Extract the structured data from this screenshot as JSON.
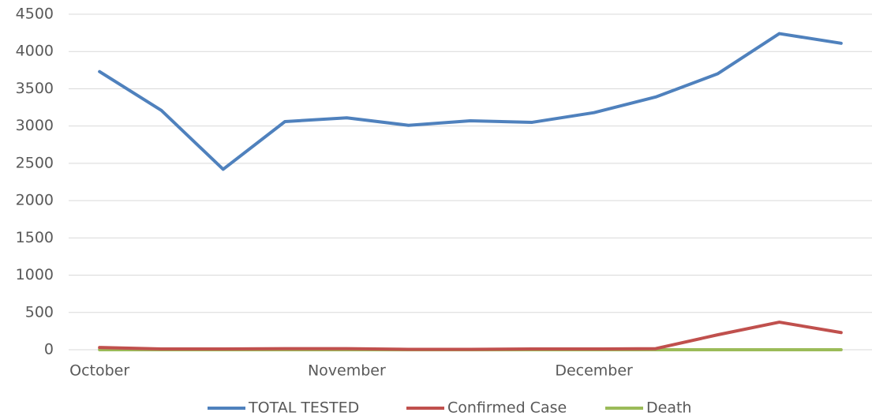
{
  "chart_data": {
    "type": "line",
    "categories": [
      "October",
      null,
      null,
      null,
      "November",
      null,
      null,
      null,
      "December",
      null,
      null,
      null,
      null
    ],
    "series": [
      {
        "name": "TOTAL TESTED",
        "color": "#4f81bd",
        "values": [
          3730,
          3210,
          2420,
          3060,
          3110,
          3010,
          3070,
          3050,
          3180,
          3390,
          3700,
          4240,
          4110
        ]
      },
      {
        "name": "Confirmed Case",
        "color": "#c0504d",
        "values": [
          30,
          10,
          10,
          15,
          15,
          5,
          5,
          10,
          10,
          15,
          200,
          370,
          230
        ]
      },
      {
        "name": "Death",
        "color": "#9bbb59",
        "values": [
          0,
          0,
          0,
          0,
          0,
          0,
          0,
          0,
          0,
          0,
          0,
          0,
          0
        ]
      }
    ],
    "ylim": [
      0,
      4500
    ],
    "yticks": [
      0,
      500,
      1000,
      1500,
      2000,
      2500,
      3000,
      3500,
      4000,
      4500
    ],
    "grid": true,
    "legend": "bottom"
  }
}
